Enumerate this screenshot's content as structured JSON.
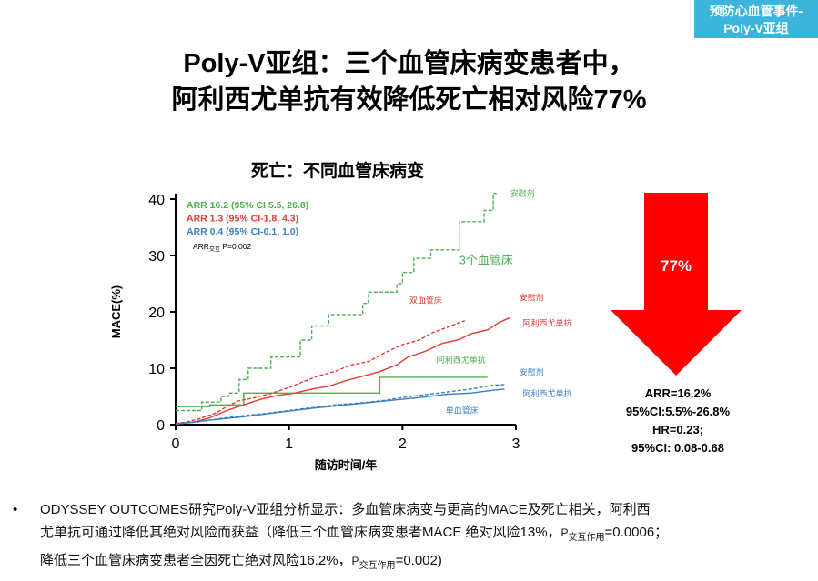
{
  "badge": {
    "line1": "预防心血管事件-",
    "line2": "Poly-V亚组"
  },
  "title": {
    "line1": "Poly-V亚组：三个血管床病变患者中，",
    "line2": "阿利西尤单抗有效降低死亡相对风险77%"
  },
  "chart_title": "死亡：不同血管床病变",
  "arrow": {
    "label": "77%",
    "color": "#ff0000"
  },
  "stats": [
    "ARR=16.2%",
    "95%CI:5.5%-26.8%",
    "HR=0.23;",
    "95%CI: 0.08-0.68"
  ],
  "bullet": {
    "mark": "•",
    "line1": "ODYSSEY OUTCOMES研究Poly-V亚组分析显示：多血管床病变与更高的MACE及死亡相关，阿利西",
    "line2_a": "尤单抗可通过降低其绝对风险而获益（降低三个血管床病变患者MACE 绝对风险13%，",
    "line2_p": "P",
    "line2_sub": "交互作用",
    "line2_b": "=0.0006；",
    "line3_a": "降低三个血管床病变患者全因死亡绝对风险16.2%，",
    "line3_p": "P",
    "line3_sub": "交互作用",
    "line3_b": "=0.002)"
  },
  "chart_data": {
    "type": "line",
    "xlabel": "随访时间/年",
    "ylabel": "MACE(%)",
    "xlim": [
      0,
      3
    ],
    "ylim": [
      0,
      40
    ],
    "xticks": [
      0,
      1,
      2,
      3
    ],
    "yticks": [
      0,
      10,
      20,
      30,
      40
    ],
    "legend": [
      {
        "text": "ARR 16.2 (95% CI 5.5, 26.8)",
        "color": "#4caf50"
      },
      {
        "text": "ARR 1.3 (95% CI-1.8, 4.3)",
        "color": "#e53935"
      },
      {
        "text": "ARR 0.4 (95% CI-0.1, 1.0)",
        "color": "#3d7fc1"
      }
    ],
    "interaction": {
      "text": "ARR",
      "sub": "交互",
      "rest": " P=0.002"
    },
    "annotations": [
      {
        "text": "安慰剂",
        "x": 2.95,
        "y": 40.5,
        "color": "#4caf50",
        "size": 9
      },
      {
        "text": "3个血管床",
        "x": 2.5,
        "y": 28.5,
        "color": "#4caf50",
        "size": 13
      },
      {
        "text": "双血管床",
        "x": 2.06,
        "y": 21.5,
        "color": "#e53935",
        "size": 9
      },
      {
        "text": "安慰剂",
        "x": 3.03,
        "y": 22.0,
        "color": "#e53935",
        "size": 9
      },
      {
        "text": "阿利西尤单抗",
        "x": 3.06,
        "y": 17.5,
        "color": "#e53935",
        "size": 9
      },
      {
        "text": "阿利西尤单抗",
        "x": 2.3,
        "y": 11.0,
        "color": "#4caf50",
        "size": 9
      },
      {
        "text": "安慰剂",
        "x": 3.03,
        "y": 8.8,
        "color": "#3d7fc1",
        "size": 9
      },
      {
        "text": "阿利西尤单抗",
        "x": 3.06,
        "y": 5.0,
        "color": "#3d7fc1",
        "size": 9
      },
      {
        "text": "单血管床",
        "x": 2.38,
        "y": 2.0,
        "color": "#3d7fc1",
        "size": 9
      }
    ],
    "series": [
      {
        "name": "三个血管床 安慰剂",
        "color": "#4caf50",
        "dash": true,
        "points": [
          [
            0,
            2.5
          ],
          [
            0.23,
            2.5
          ],
          [
            0.23,
            4
          ],
          [
            0.4,
            4
          ],
          [
            0.4,
            5
          ],
          [
            0.47,
            5
          ],
          [
            0.47,
            5.6
          ],
          [
            0.56,
            5.6
          ],
          [
            0.56,
            8
          ],
          [
            0.64,
            8
          ],
          [
            0.64,
            10
          ],
          [
            0.84,
            10
          ],
          [
            0.84,
            12
          ],
          [
            1.1,
            12
          ],
          [
            1.1,
            15
          ],
          [
            1.2,
            15
          ],
          [
            1.2,
            17.5
          ],
          [
            1.35,
            17.5
          ],
          [
            1.35,
            19.5
          ],
          [
            1.65,
            19.5
          ],
          [
            1.65,
            21.5
          ],
          [
            1.7,
            21.5
          ],
          [
            1.7,
            23.5
          ],
          [
            1.95,
            23.5
          ],
          [
            1.95,
            25
          ],
          [
            2.0,
            25
          ],
          [
            2.0,
            27
          ],
          [
            2.1,
            27
          ],
          [
            2.1,
            29.5
          ],
          [
            2.25,
            29.5
          ],
          [
            2.25,
            31
          ],
          [
            2.5,
            31
          ],
          [
            2.5,
            33.5
          ],
          [
            2.5,
            33.5
          ],
          [
            2.5,
            36
          ],
          [
            2.72,
            36
          ],
          [
            2.72,
            38
          ],
          [
            2.8,
            38
          ],
          [
            2.8,
            41
          ],
          [
            2.83,
            41
          ]
        ]
      },
      {
        "name": "三个血管床 阿利西尤单抗",
        "color": "#4caf50",
        "dash": false,
        "points": [
          [
            0,
            3.2
          ],
          [
            0.3,
            3.2
          ],
          [
            0.3,
            3.5
          ],
          [
            0.6,
            3.5
          ],
          [
            0.6,
            5.6
          ],
          [
            1.8,
            5.6
          ],
          [
            1.8,
            8.4
          ],
          [
            2.75,
            8.4
          ]
        ]
      },
      {
        "name": "双血管床 安慰剂",
        "color": "#e53935",
        "dash": true,
        "points": [
          [
            0,
            0.2
          ],
          [
            0.1,
            0.5
          ],
          [
            0.2,
            1
          ],
          [
            0.35,
            2
          ],
          [
            0.45,
            3.2
          ],
          [
            0.55,
            4.2
          ],
          [
            0.7,
            4.8
          ],
          [
            0.85,
            5.6
          ],
          [
            1.0,
            6.6
          ],
          [
            1.1,
            7.4
          ],
          [
            1.25,
            8.6
          ],
          [
            1.4,
            9.4
          ],
          [
            1.55,
            10.6
          ],
          [
            1.7,
            11.2
          ],
          [
            1.85,
            12.8
          ],
          [
            2.0,
            14.2
          ],
          [
            2.15,
            15.0
          ],
          [
            2.25,
            16.2
          ],
          [
            2.4,
            17.3
          ],
          [
            2.5,
            18.1
          ],
          [
            2.55,
            18.4
          ]
        ]
      },
      {
        "name": "双血管床 阿利西尤单抗",
        "color": "#e53935",
        "dash": false,
        "points": [
          [
            0,
            0.2
          ],
          [
            0.15,
            0.4
          ],
          [
            0.3,
            1.2
          ],
          [
            0.45,
            2.5
          ],
          [
            0.6,
            3.5
          ],
          [
            0.75,
            4.5
          ],
          [
            0.9,
            5.2
          ],
          [
            1.05,
            5.6
          ],
          [
            1.2,
            6.3
          ],
          [
            1.35,
            6.8
          ],
          [
            1.5,
            7.8
          ],
          [
            1.65,
            8.6
          ],
          [
            1.8,
            9.4
          ],
          [
            1.95,
            10.6
          ],
          [
            2.05,
            12.0
          ],
          [
            2.2,
            13.0
          ],
          [
            2.35,
            14.4
          ],
          [
            2.5,
            15.1
          ],
          [
            2.6,
            16.1
          ],
          [
            2.75,
            16.8
          ],
          [
            2.85,
            18.1
          ],
          [
            2.95,
            19.0
          ]
        ]
      },
      {
        "name": "单血管床 安慰剂",
        "color": "#3d7fc1",
        "dash": true,
        "points": [
          [
            0,
            0.1
          ],
          [
            0.2,
            0.5
          ],
          [
            0.4,
            1.1
          ],
          [
            0.6,
            1.6
          ],
          [
            0.8,
            2.0
          ],
          [
            1.0,
            2.5
          ],
          [
            1.2,
            3.0
          ],
          [
            1.4,
            3.5
          ],
          [
            1.6,
            3.8
          ],
          [
            1.8,
            4.2
          ],
          [
            2.0,
            4.8
          ],
          [
            2.2,
            5.3
          ],
          [
            2.4,
            5.8
          ],
          [
            2.6,
            6.3
          ],
          [
            2.8,
            7.0
          ],
          [
            2.9,
            7.1
          ]
        ]
      },
      {
        "name": "单血管床 阿利西尤单抗",
        "color": "#3d7fc1",
        "dash": false,
        "points": [
          [
            0,
            0.1
          ],
          [
            0.2,
            0.6
          ],
          [
            0.4,
            1.0
          ],
          [
            0.6,
            1.4
          ],
          [
            0.8,
            1.9
          ],
          [
            1.0,
            2.4
          ],
          [
            1.2,
            2.9
          ],
          [
            1.4,
            3.3
          ],
          [
            1.6,
            3.7
          ],
          [
            1.8,
            4.1
          ],
          [
            2.0,
            4.5
          ],
          [
            2.2,
            4.9
          ],
          [
            2.4,
            5.4
          ],
          [
            2.6,
            5.6
          ],
          [
            2.8,
            6.1
          ],
          [
            2.9,
            6.3
          ]
        ]
      }
    ]
  }
}
